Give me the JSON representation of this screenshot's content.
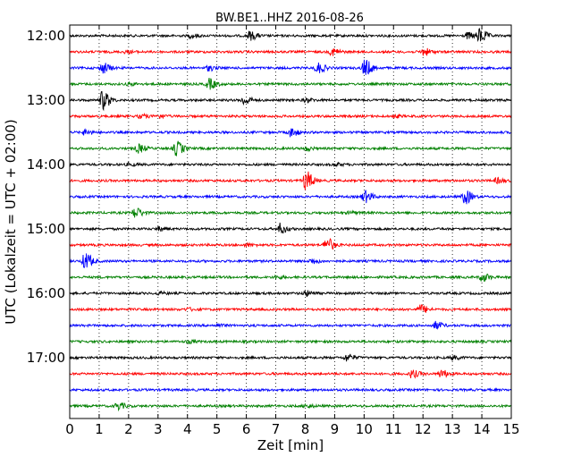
{
  "chart_data": {
    "type": "line",
    "title": "BW.BE1..HHZ 2016-08-26",
    "xlabel": "Zeit  [min]",
    "ylabel": "UTC (Lokalzeit = UTC + 02:00)",
    "xlim": [
      0,
      15
    ],
    "x_ticks": [
      "0",
      "1",
      "2",
      "3",
      "4",
      "5",
      "6",
      "7",
      "8",
      "9",
      "10",
      "11",
      "12",
      "13",
      "14",
      "15"
    ],
    "y_tick_labels": [
      "12:00",
      "13:00",
      "14:00",
      "15:00",
      "16:00",
      "17:00"
    ],
    "grid": "vertical dotted",
    "trace_colors": [
      "#000000",
      "#ff0000",
      "#0000ff",
      "#008000"
    ],
    "traces": [
      {
        "start": "12:00",
        "color": "#000000",
        "events": [
          [
            6.1,
            0.35
          ],
          [
            13.9,
            0.6
          ],
          [
            13.5,
            0.25
          ],
          [
            4.1,
            0.15
          ]
        ]
      },
      {
        "start": "12:15",
        "color": "#ff0000",
        "events": [
          [
            8.9,
            0.3
          ],
          [
            12.0,
            0.3
          ],
          [
            1.9,
            0.1
          ]
        ]
      },
      {
        "start": "12:30",
        "color": "#0000ff",
        "events": [
          [
            1.1,
            0.45
          ],
          [
            8.4,
            0.45
          ],
          [
            10.0,
            0.7
          ],
          [
            4.7,
            0.2
          ]
        ]
      },
      {
        "start": "12:45",
        "color": "#008000",
        "events": [
          [
            4.7,
            0.45
          ],
          [
            2.0,
            0.1
          ]
        ]
      },
      {
        "start": "13:00",
        "color": "#000000",
        "events": [
          [
            1.1,
            0.8
          ],
          [
            5.9,
            0.35
          ],
          [
            8.0,
            0.15
          ]
        ]
      },
      {
        "start": "13:15",
        "color": "#ff0000",
        "events": [
          [
            2.4,
            0.15
          ],
          [
            3.0,
            0.15
          ],
          [
            11.0,
            0.1
          ]
        ]
      },
      {
        "start": "13:30",
        "color": "#0000ff",
        "events": [
          [
            0.5,
            0.2
          ],
          [
            7.5,
            0.35
          ]
        ]
      },
      {
        "start": "13:45",
        "color": "#008000",
        "events": [
          [
            2.3,
            0.35
          ],
          [
            3.6,
            0.6
          ],
          [
            8.0,
            0.15
          ]
        ]
      },
      {
        "start": "14:00",
        "color": "#000000",
        "events": [
          [
            2.0,
            0.1
          ],
          [
            9.0,
            0.1
          ]
        ]
      },
      {
        "start": "14:15",
        "color": "#ff0000",
        "events": [
          [
            8.0,
            0.8
          ],
          [
            14.5,
            0.2
          ]
        ]
      },
      {
        "start": "14:30",
        "color": "#0000ff",
        "events": [
          [
            10.0,
            0.5
          ],
          [
            13.4,
            0.6
          ]
        ]
      },
      {
        "start": "14:45",
        "color": "#008000",
        "events": [
          [
            2.2,
            0.45
          ],
          [
            9.5,
            0.1
          ]
        ]
      },
      {
        "start": "15:00",
        "color": "#000000",
        "events": [
          [
            7.1,
            0.45
          ],
          [
            3.0,
            0.15
          ]
        ]
      },
      {
        "start": "15:15",
        "color": "#ff0000",
        "events": [
          [
            8.7,
            0.6
          ],
          [
            6.0,
            0.1
          ]
        ]
      },
      {
        "start": "15:30",
        "color": "#0000ff",
        "events": [
          [
            0.5,
            0.7
          ],
          [
            8.2,
            0.2
          ]
        ]
      },
      {
        "start": "15:45",
        "color": "#008000",
        "events": [
          [
            14.0,
            0.35
          ],
          [
            7.0,
            0.1
          ]
        ]
      },
      {
        "start": "16:00",
        "color": "#000000",
        "events": [
          [
            8.0,
            0.2
          ],
          [
            3.0,
            0.1
          ]
        ]
      },
      {
        "start": "16:15",
        "color": "#ff0000",
        "events": [
          [
            11.9,
            0.35
          ],
          [
            4.0,
            0.1
          ]
        ]
      },
      {
        "start": "16:30",
        "color": "#0000ff",
        "events": [
          [
            12.4,
            0.3
          ],
          [
            5.0,
            0.1
          ]
        ]
      },
      {
        "start": "16:45",
        "color": "#008000",
        "events": [
          [
            4.0,
            0.1
          ]
        ]
      },
      {
        "start": "17:00",
        "color": "#000000",
        "events": [
          [
            9.4,
            0.3
          ],
          [
            13.0,
            0.15
          ]
        ]
      },
      {
        "start": "17:15",
        "color": "#ff0000",
        "events": [
          [
            11.6,
            0.3
          ],
          [
            12.6,
            0.3
          ]
        ]
      },
      {
        "start": "17:30",
        "color": "#0000ff",
        "events": []
      },
      {
        "start": "17:45",
        "color": "#008000",
        "events": [
          [
            1.6,
            0.3
          ],
          [
            8.0,
            0.15
          ]
        ]
      }
    ]
  }
}
